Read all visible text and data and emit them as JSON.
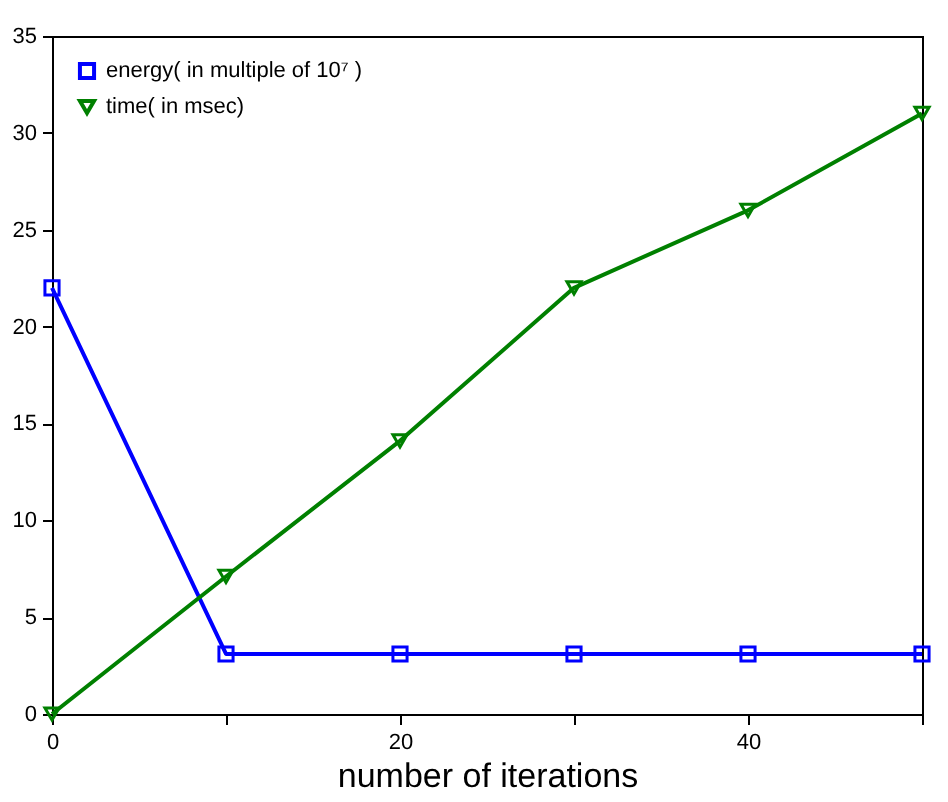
{
  "chart_data": {
    "type": "line",
    "xlabel": "number of iterations",
    "x": [
      0,
      10,
      20,
      30,
      40,
      50
    ],
    "xlim": [
      0,
      50
    ],
    "xticks": [
      0,
      {
        "value": 10,
        "label": null
      },
      20,
      {
        "value": 30,
        "label": null
      },
      40,
      {
        "value": 50,
        "label": null
      }
    ],
    "ylim": [
      0,
      35
    ],
    "yticks": [
      0,
      5,
      10,
      15,
      20,
      25,
      30,
      35
    ],
    "grid": false,
    "legend": "top left",
    "line_style": "solid",
    "series": [
      {
        "name": "energy( in multiple of 10⁷ )",
        "color": "#0000ff",
        "marker": "square",
        "values": [
          22,
          3.1,
          3.1,
          3.1,
          3.1,
          3.1
        ]
      },
      {
        "name": "time( in msec)",
        "color": "#008000",
        "marker": "triangle",
        "values": [
          0,
          7.1,
          14.1,
          22,
          26,
          31
        ]
      }
    ]
  }
}
